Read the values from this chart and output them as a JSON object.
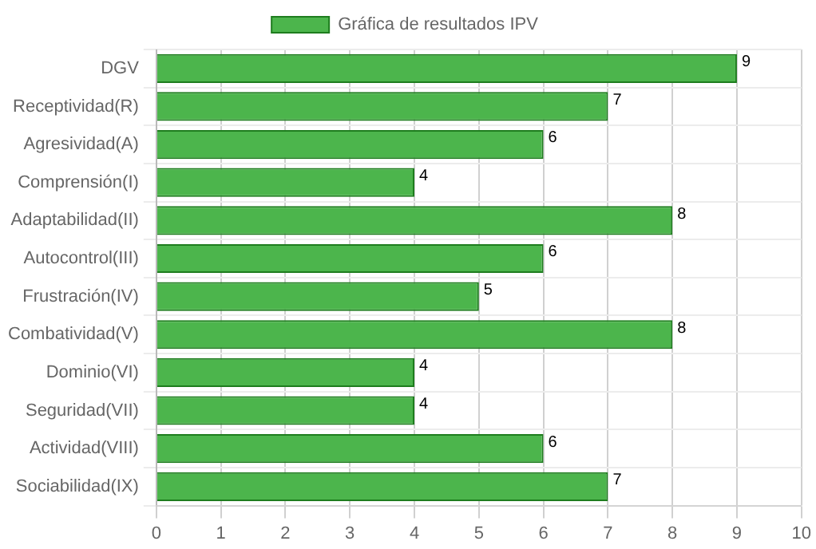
{
  "chart_data": {
    "type": "bar",
    "orientation": "horizontal",
    "categories": [
      "DGV",
      "Receptividad(R)",
      "Agresividad(A)",
      "Comprensión(I)",
      "Adaptabilidad(II)",
      "Autocontrol(III)",
      "Frustración(IV)",
      "Combatividad(V)",
      "Dominio(VI)",
      "Seguridad(VII)",
      "Actividad(VIII)",
      "Sociabilidad(IX)"
    ],
    "series": [
      {
        "name": "Gráfica de resultados IPV",
        "color": "#4cb54c",
        "values": [
          9,
          7,
          6,
          4,
          8,
          6,
          5,
          8,
          4,
          4,
          6,
          7
        ]
      }
    ],
    "xlim": [
      0,
      10
    ],
    "xticks": [
      0,
      1,
      2,
      3,
      4,
      5,
      6,
      7,
      8,
      9,
      10
    ],
    "grid": true,
    "legend": "top",
    "data_labels": true
  }
}
